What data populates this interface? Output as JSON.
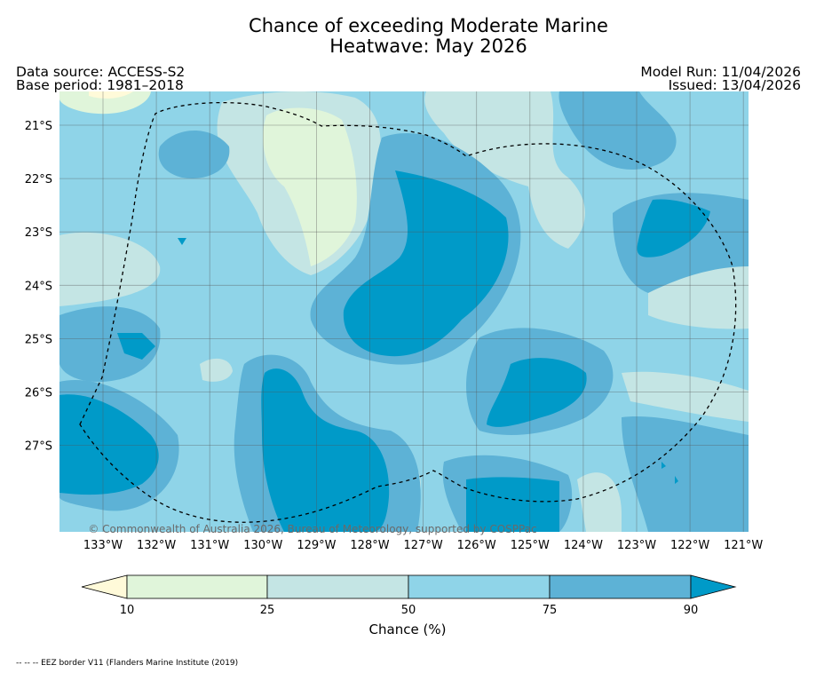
{
  "title": {
    "line1": "Chance of exceeding Moderate Marine",
    "line2": "Heatwave: May 2026"
  },
  "info": {
    "data_source": "Data source: ACCESS-S2",
    "base_period": "Base period: 1981–2018",
    "model_run": "Model Run: 11/04/2026",
    "issued": "Issued: 13/04/2026"
  },
  "map": {
    "lon_labels": [
      "133°W",
      "132°W",
      "131°W",
      "130°W",
      "129°W",
      "128°W",
      "127°W",
      "126°W",
      "125°W",
      "124°W",
      "123°W",
      "122°W",
      "121°W"
    ],
    "lat_labels": [
      "21°S",
      "22°S",
      "23°S",
      "24°S",
      "25°S",
      "26°S",
      "27°S"
    ],
    "copyright": "© Commonwealth of Australia 2026, Bureau of Meteorology, supported by COSPPac"
  },
  "colorbar": {
    "ticks": [
      "10",
      "25",
      "50",
      "75",
      "90"
    ],
    "label": "Chance (%)",
    "colors": {
      "lt10": "#fffad9",
      "c10_25": "#e0f5da",
      "c25_50": "#c4e5e4",
      "c50_75": "#8fd4e8",
      "c75_90": "#5db2d6",
      "gt90": "#009ac8"
    }
  },
  "footnote": "-- -- -- EEZ border V11 (Flanders Marine Institute (2019)"
}
